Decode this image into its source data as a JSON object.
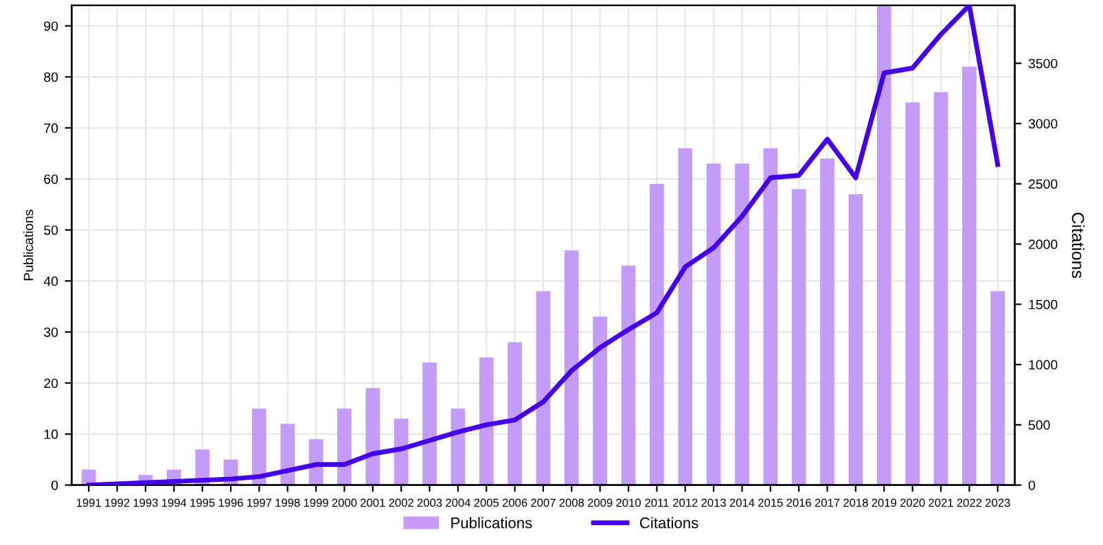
{
  "chart_data": {
    "type": "bar",
    "ylabel": "Publications",
    "y2label": "Citations",
    "categories": [
      "1991",
      "1992",
      "1993",
      "1994",
      "1995",
      "1996",
      "1997",
      "1998",
      "1999",
      "2000",
      "2001",
      "2002",
      "2003",
      "2004",
      "2005",
      "2006",
      "2007",
      "2008",
      "2009",
      "2010",
      "2011",
      "2012",
      "2013",
      "2014",
      "2015",
      "2016",
      "2017",
      "2018",
      "2019",
      "2020",
      "2021",
      "2022",
      "2023"
    ],
    "series": [
      {
        "name": "Publications",
        "color": "#c29cf8",
        "values": [
          3,
          0,
          2,
          3,
          7,
          5,
          15,
          12,
          9,
          15,
          19,
          13,
          24,
          15,
          25,
          28,
          38,
          46,
          33,
          43,
          59,
          66,
          63,
          63,
          66,
          58,
          64,
          57,
          94,
          75,
          77,
          82,
          38
        ]
      },
      {
        "name": "Citations",
        "type": "line",
        "axis": "y2",
        "color": "#4400e8",
        "values": [
          0,
          10,
          20,
          30,
          40,
          50,
          70,
          120,
          170,
          170,
          260,
          300,
          370,
          440,
          500,
          540,
          690,
          950,
          1140,
          1290,
          1430,
          1810,
          1970,
          2230,
          2550,
          2570,
          2870,
          2550,
          3420,
          3460,
          3740,
          3980,
          2660
        ]
      }
    ],
    "ylim": [
      0,
      94
    ],
    "yticks": [
      0,
      10,
      20,
      30,
      40,
      50,
      60,
      70,
      80,
      90
    ],
    "y2lim": [
      0,
      3980
    ],
    "y2ticks": [
      0,
      500,
      1000,
      1500,
      2000,
      2500,
      3000,
      3500
    ],
    "grid": true,
    "legend": "bottom",
    "marker": "none",
    "line_style": "solid"
  }
}
